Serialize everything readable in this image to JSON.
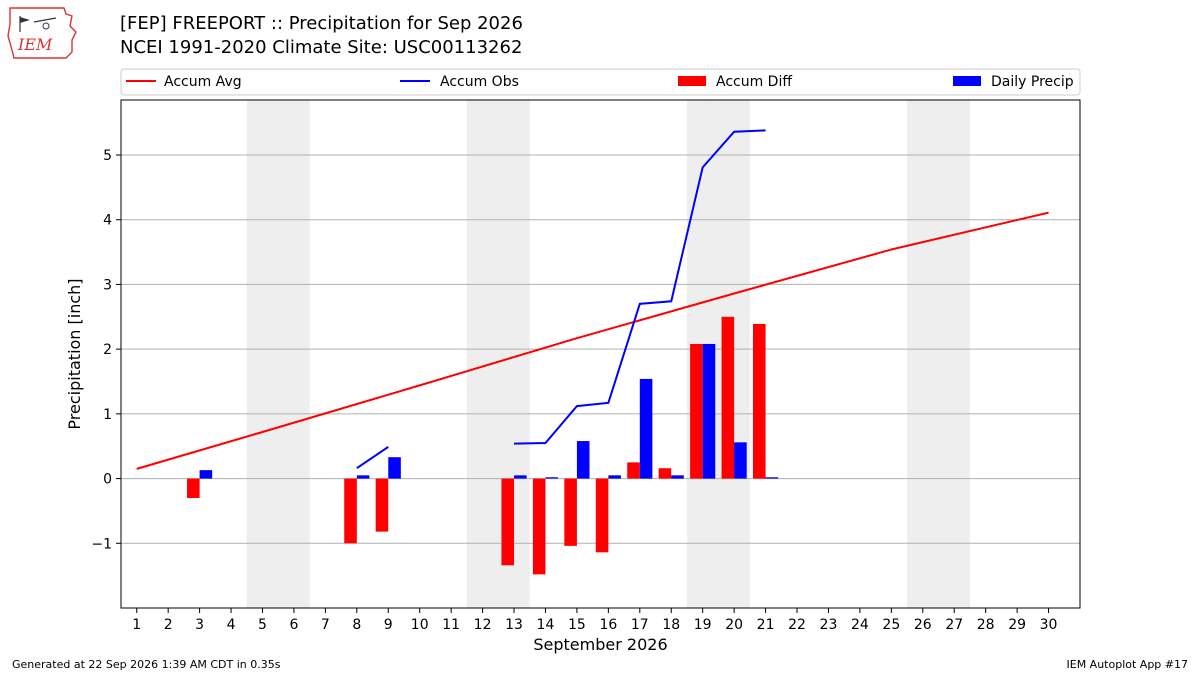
{
  "header": {
    "title": "[FEP] FREEPORT :: Precipitation for Sep 2026",
    "subtitle": "NCEI 1991-2020 Climate Site: USC00113262",
    "logo_text": "IEM"
  },
  "footer": {
    "generated": "Generated at 22 Sep 2026 1:39 AM CDT in 0.35s",
    "app": "IEM Autoplot App #17"
  },
  "colors": {
    "avg": "#ff0000",
    "obs": "#0000ff",
    "diff": "#ff0000",
    "daily": "#0000ff",
    "weekend": "#eeeeee",
    "grid": "#b0b0b0"
  },
  "chart_data": {
    "type": "bar",
    "xlabel": "September 2026",
    "ylabel": "Precipitation [inch]",
    "xlim": [
      0.5,
      31
    ],
    "ylim": [
      -2.0,
      5.85
    ],
    "grid": "horizontal",
    "legend_placement": "top",
    "legend": [
      "Accum Avg",
      "Accum Obs",
      "Accum Diff",
      "Daily Precip"
    ],
    "x_ticks": [
      "1",
      "2",
      "3",
      "4",
      "5",
      "6",
      "7",
      "8",
      "9",
      "10",
      "11",
      "12",
      "13",
      "14",
      "15",
      "16",
      "17",
      "18",
      "19",
      "20",
      "21",
      "22",
      "23",
      "24",
      "25",
      "26",
      "27",
      "28",
      "29",
      "30"
    ],
    "y_ticks": [
      {
        "v": -1,
        "label": "−1"
      },
      {
        "v": 0,
        "label": "0"
      },
      {
        "v": 1,
        "label": "1"
      },
      {
        "v": 2,
        "label": "2"
      },
      {
        "v": 3,
        "label": "3"
      },
      {
        "v": 4,
        "label": "4"
      },
      {
        "v": 5,
        "label": "5"
      }
    ],
    "shaded_days": [
      [
        5,
        6
      ],
      [
        12,
        13
      ],
      [
        19,
        20
      ],
      [
        26,
        27
      ]
    ],
    "accum_avg": {
      "name": "Accum Avg",
      "x": [
        1,
        5,
        10,
        15,
        20,
        25,
        30
      ],
      "values": [
        0.15,
        0.72,
        1.44,
        2.17,
        2.86,
        3.54,
        4.11
      ]
    },
    "accum_obs": {
      "name": "Accum Obs",
      "segments": [
        {
          "x": [
            8,
            9
          ],
          "values": [
            0.16,
            0.49
          ]
        },
        {
          "x": [
            13,
            14,
            15,
            16,
            17,
            18,
            19,
            20,
            21
          ],
          "values": [
            0.54,
            0.55,
            1.12,
            1.17,
            2.7,
            2.74,
            4.81,
            5.36,
            5.38
          ]
        }
      ]
    },
    "accum_diff": {
      "name": "Accum Diff",
      "x": [
        3,
        8,
        9,
        13,
        14,
        15,
        16,
        17,
        18,
        19,
        20,
        21
      ],
      "values": [
        -0.3,
        -1.0,
        -0.82,
        -1.34,
        -1.48,
        -1.04,
        -1.14,
        0.25,
        0.16,
        2.08,
        2.5,
        2.39
      ]
    },
    "daily_precip": {
      "name": "Daily Precip",
      "x": [
        3,
        8,
        9,
        13,
        14,
        15,
        16,
        17,
        18,
        19,
        20,
        21
      ],
      "values": [
        0.13,
        0.05,
        0.33,
        0.05,
        0.02,
        0.58,
        0.05,
        1.54,
        0.05,
        2.08,
        0.56,
        0.02
      ]
    }
  }
}
